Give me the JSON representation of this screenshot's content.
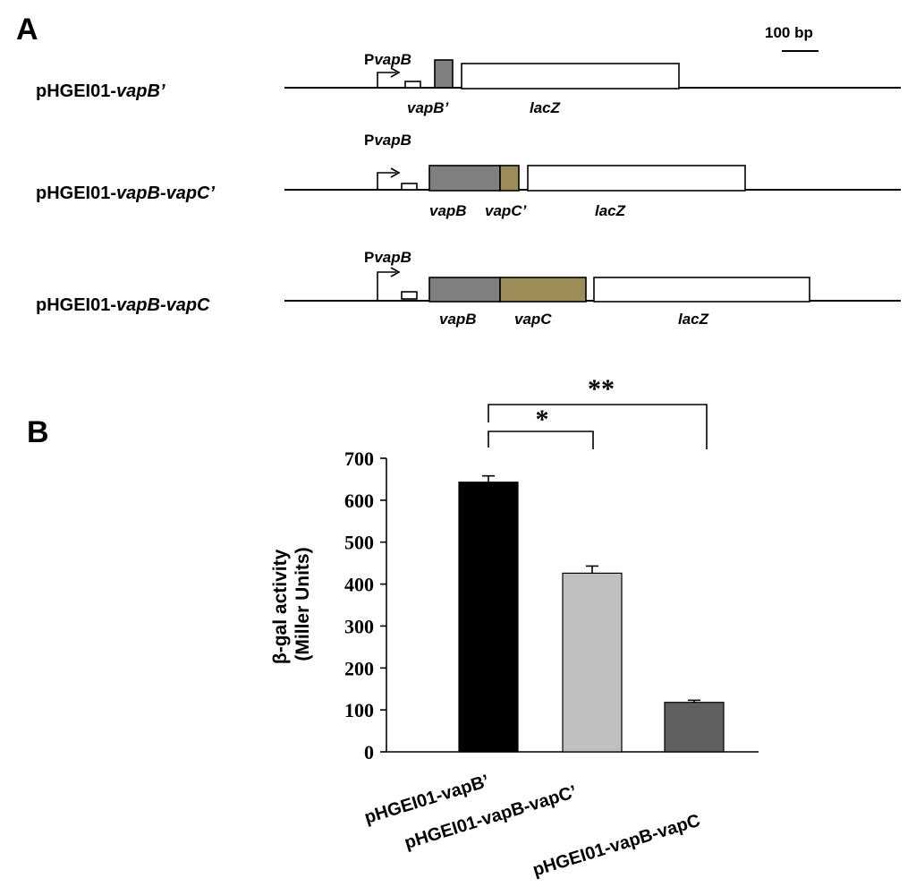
{
  "panel_a": {
    "label": "A",
    "scale_bar_label": "100 bp",
    "constructs": [
      {
        "plasmid_prefix": "pHGEI01-",
        "plasmid_italic": "vapB’",
        "promoter_prefix": "P",
        "promoter_italic": "vapB",
        "gene_labels": [
          "vapB’",
          "lacZ"
        ]
      },
      {
        "plasmid_prefix": "pHGEI01-",
        "plasmid_italic": "vapB-vapC’",
        "promoter_prefix": "P",
        "promoter_italic": "vapB",
        "gene_labels": [
          "vapB",
          "vapC’",
          "lacZ"
        ]
      },
      {
        "plasmid_prefix": "pHGEI01-",
        "plasmid_italic": "vapB-vapC",
        "promoter_prefix": "P",
        "promoter_italic": "vapB",
        "gene_labels": [
          "vapB",
          "vapC",
          "lacZ"
        ]
      }
    ],
    "colors": {
      "vapB": "#808080",
      "vapC": "#9c8c58",
      "lacZ": "#ffffff",
      "outline": "#000000"
    }
  },
  "panel_b": {
    "label": "B",
    "significance": [
      "*",
      "**"
    ]
  },
  "chart_data": {
    "type": "bar",
    "categories": [
      "pHGEI01-vapB’",
      "pHGEI01-vapB-vapC’",
      "pHGEI01-vapB-vapC"
    ],
    "values": [
      643,
      426,
      118
    ],
    "errors": [
      15,
      17,
      5
    ],
    "bar_colors": [
      "#000000",
      "#c0c0c0",
      "#606060"
    ],
    "ylabel_line1": "β-gal activity",
    "ylabel_line2": "(Miller Units)",
    "ylim": [
      0,
      700
    ],
    "yticks": [
      0,
      100,
      200,
      300,
      400,
      500,
      600,
      700
    ],
    "grid": false
  }
}
